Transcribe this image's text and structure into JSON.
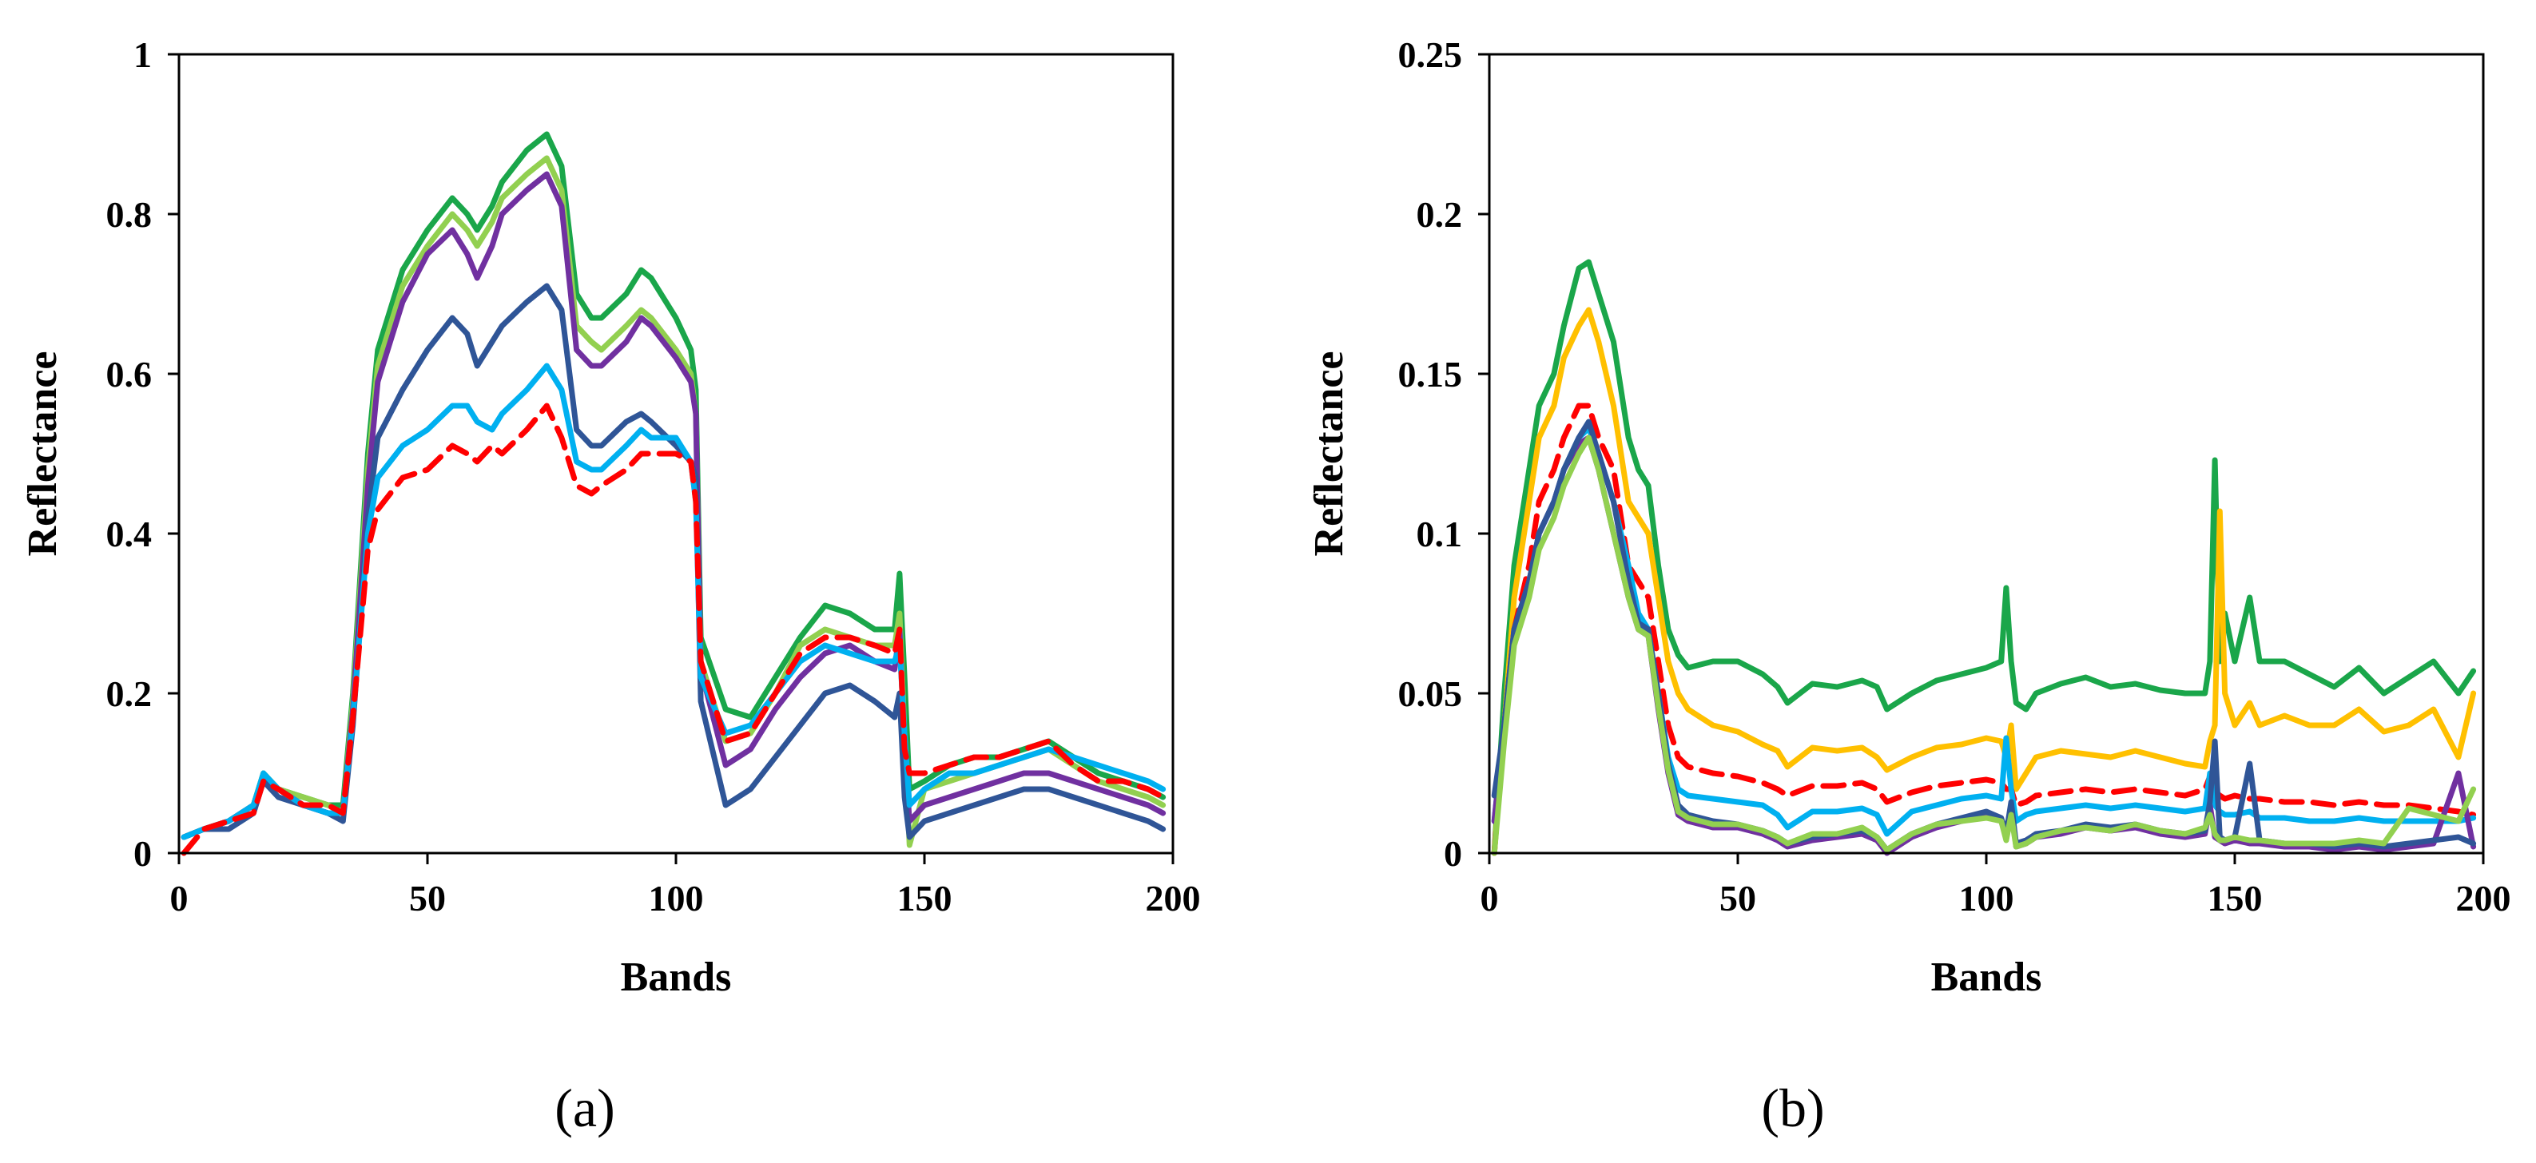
{
  "figure": {
    "panels": [
      {
        "label": "(a)"
      },
      {
        "label": "(b)"
      }
    ]
  },
  "chart_data": [
    {
      "type": "line",
      "panel": "(a)",
      "title": "",
      "xlabel": "Bands",
      "ylabel": "Reflectance",
      "xlim": [
        0,
        200
      ],
      "ylim": [
        0,
        1
      ],
      "xticks": [
        0,
        50,
        100,
        150,
        200
      ],
      "xtick_labels": [
        "0",
        "50",
        "100",
        "150",
        "200"
      ],
      "yticks": [
        0,
        0.2,
        0.4,
        0.6,
        0.8,
        1
      ],
      "ytick_labels": [
        "0",
        "0.2",
        "0.4",
        "0.6",
        "0.8",
        "1"
      ],
      "grid": false,
      "x": [
        1,
        5,
        10,
        15,
        17,
        20,
        25,
        30,
        33,
        35,
        38,
        40,
        45,
        50,
        55,
        58,
        60,
        63,
        65,
        70,
        74,
        77,
        80,
        83,
        85,
        90,
        93,
        95,
        100,
        103,
        104,
        105,
        110,
        115,
        120,
        125,
        130,
        135,
        140,
        144,
        145,
        146,
        147,
        150,
        155,
        160,
        165,
        170,
        175,
        180,
        185,
        190,
        195,
        198
      ],
      "series": [
        {
          "name": "Green",
          "color": "#1aa64a",
          "dash": "",
          "values": [
            0.02,
            0.03,
            0.04,
            0.06,
            0.1,
            0.08,
            0.07,
            0.06,
            0.06,
            0.2,
            0.5,
            0.63,
            0.73,
            0.78,
            0.82,
            0.8,
            0.78,
            0.81,
            0.84,
            0.88,
            0.9,
            0.86,
            0.7,
            0.67,
            0.67,
            0.7,
            0.73,
            0.72,
            0.67,
            0.63,
            0.58,
            0.27,
            0.18,
            0.17,
            0.22,
            0.27,
            0.31,
            0.3,
            0.28,
            0.28,
            0.35,
            0.22,
            0.08,
            0.09,
            0.11,
            0.12,
            0.12,
            0.13,
            0.14,
            0.12,
            0.1,
            0.09,
            0.08,
            0.07
          ]
        },
        {
          "name": "Light green",
          "color": "#92d050",
          "dash": "",
          "values": [
            0.02,
            0.03,
            0.04,
            0.06,
            0.1,
            0.08,
            0.07,
            0.06,
            0.05,
            0.19,
            0.48,
            0.61,
            0.71,
            0.76,
            0.8,
            0.78,
            0.76,
            0.79,
            0.82,
            0.85,
            0.87,
            0.83,
            0.66,
            0.64,
            0.63,
            0.66,
            0.68,
            0.67,
            0.63,
            0.6,
            0.55,
            0.24,
            0.14,
            0.15,
            0.2,
            0.26,
            0.28,
            0.27,
            0.26,
            0.26,
            0.3,
            0.15,
            0.01,
            0.08,
            0.09,
            0.1,
            0.11,
            0.12,
            0.13,
            0.11,
            0.09,
            0.08,
            0.07,
            0.06
          ]
        },
        {
          "name": "Purple",
          "color": "#7030a0",
          "dash": "",
          "values": [
            0.02,
            0.03,
            0.04,
            0.06,
            0.09,
            0.08,
            0.06,
            0.05,
            0.05,
            0.18,
            0.46,
            0.59,
            0.69,
            0.75,
            0.78,
            0.75,
            0.72,
            0.76,
            0.8,
            0.83,
            0.85,
            0.81,
            0.63,
            0.61,
            0.61,
            0.64,
            0.67,
            0.66,
            0.62,
            0.59,
            0.55,
            0.23,
            0.11,
            0.13,
            0.18,
            0.22,
            0.25,
            0.26,
            0.24,
            0.23,
            0.28,
            0.13,
            0.04,
            0.06,
            0.07,
            0.08,
            0.09,
            0.1,
            0.1,
            0.09,
            0.08,
            0.07,
            0.06,
            0.05
          ]
        },
        {
          "name": "Dark blue",
          "color": "#2f5597",
          "dash": "",
          "values": [
            0.02,
            0.03,
            0.03,
            0.05,
            0.09,
            0.07,
            0.06,
            0.05,
            0.04,
            0.16,
            0.42,
            0.52,
            0.58,
            0.63,
            0.67,
            0.65,
            0.61,
            0.64,
            0.66,
            0.69,
            0.71,
            0.68,
            0.53,
            0.51,
            0.51,
            0.54,
            0.55,
            0.54,
            0.51,
            0.49,
            0.47,
            0.19,
            0.06,
            0.08,
            0.12,
            0.16,
            0.2,
            0.21,
            0.19,
            0.17,
            0.2,
            0.07,
            0.02,
            0.04,
            0.05,
            0.06,
            0.07,
            0.08,
            0.08,
            0.07,
            0.06,
            0.05,
            0.04,
            0.03
          ]
        },
        {
          "name": "Light blue",
          "color": "#00b0f0",
          "dash": "",
          "values": [
            0.02,
            0.03,
            0.04,
            0.06,
            0.1,
            0.08,
            0.06,
            0.05,
            0.05,
            0.17,
            0.4,
            0.47,
            0.51,
            0.53,
            0.56,
            0.56,
            0.54,
            0.53,
            0.55,
            0.58,
            0.61,
            0.58,
            0.49,
            0.48,
            0.48,
            0.51,
            0.53,
            0.52,
            0.52,
            0.49,
            0.44,
            0.22,
            0.15,
            0.16,
            0.2,
            0.24,
            0.26,
            0.25,
            0.24,
            0.24,
            0.26,
            0.15,
            0.06,
            0.08,
            0.1,
            0.1,
            0.11,
            0.12,
            0.13,
            0.12,
            0.11,
            0.1,
            0.09,
            0.08
          ]
        },
        {
          "name": "Red (dashed)",
          "color": "#ff0000",
          "dash": "26,14",
          "values": [
            0.0,
            0.03,
            0.04,
            0.05,
            0.09,
            0.08,
            0.06,
            0.06,
            0.05,
            0.17,
            0.38,
            0.43,
            0.47,
            0.48,
            0.51,
            0.5,
            0.49,
            0.51,
            0.5,
            0.53,
            0.56,
            0.52,
            0.46,
            0.45,
            0.46,
            0.48,
            0.5,
            0.5,
            0.5,
            0.49,
            0.44,
            0.24,
            0.14,
            0.15,
            0.2,
            0.25,
            0.27,
            0.27,
            0.26,
            0.25,
            0.28,
            0.13,
            0.1,
            0.1,
            0.11,
            0.12,
            0.12,
            0.13,
            0.14,
            0.11,
            0.09,
            0.09,
            0.08,
            0.07
          ]
        }
      ]
    },
    {
      "type": "line",
      "panel": "(b)",
      "title": "",
      "xlabel": "Bands",
      "ylabel": "Reflectance",
      "xlim": [
        0,
        200
      ],
      "ylim": [
        0,
        0.25
      ],
      "xticks": [
        0,
        50,
        100,
        150,
        200
      ],
      "xtick_labels": [
        "0",
        "50",
        "100",
        "150",
        "200"
      ],
      "yticks": [
        0,
        0.05,
        0.1,
        0.15,
        0.2,
        0.25
      ],
      "ytick_labels": [
        "0",
        "0.05",
        "0.1",
        "0.15",
        "0.2",
        "0.25"
      ],
      "grid": false,
      "x": [
        1,
        3,
        5,
        8,
        10,
        13,
        15,
        18,
        20,
        22,
        25,
        28,
        30,
        32,
        34,
        36,
        38,
        40,
        45,
        50,
        55,
        58,
        60,
        65,
        70,
        75,
        78,
        80,
        85,
        90,
        95,
        100,
        103,
        104,
        105,
        106,
        108,
        110,
        115,
        120,
        125,
        130,
        135,
        140,
        144,
        145,
        146,
        147,
        148,
        150,
        153,
        155,
        160,
        165,
        170,
        175,
        180,
        185,
        190,
        195,
        198
      ],
      "series": [
        {
          "name": "Green",
          "color": "#1aa64a",
          "dash": "",
          "values": [
            0.0,
            0.05,
            0.09,
            0.12,
            0.14,
            0.15,
            0.165,
            0.183,
            0.185,
            0.175,
            0.16,
            0.13,
            0.12,
            0.115,
            0.09,
            0.07,
            0.062,
            0.058,
            0.06,
            0.06,
            0.056,
            0.052,
            0.047,
            0.053,
            0.052,
            0.054,
            0.052,
            0.045,
            0.05,
            0.054,
            0.056,
            0.058,
            0.06,
            0.083,
            0.06,
            0.047,
            0.045,
            0.05,
            0.053,
            0.055,
            0.052,
            0.053,
            0.051,
            0.05,
            0.05,
            0.06,
            0.123,
            0.06,
            0.075,
            0.06,
            0.08,
            0.06,
            0.06,
            0.056,
            0.052,
            0.058,
            0.05,
            0.055,
            0.06,
            0.05,
            0.057
          ]
        },
        {
          "name": "Yellow",
          "color": "#ffc000",
          "dash": "",
          "values": [
            0.0,
            0.04,
            0.08,
            0.11,
            0.13,
            0.14,
            0.155,
            0.165,
            0.17,
            0.16,
            0.14,
            0.11,
            0.105,
            0.1,
            0.08,
            0.06,
            0.05,
            0.045,
            0.04,
            0.038,
            0.034,
            0.032,
            0.027,
            0.033,
            0.032,
            0.033,
            0.03,
            0.026,
            0.03,
            0.033,
            0.034,
            0.036,
            0.035,
            0.03,
            0.04,
            0.02,
            0.025,
            0.03,
            0.032,
            0.031,
            0.03,
            0.032,
            0.03,
            0.028,
            0.027,
            0.035,
            0.04,
            0.107,
            0.05,
            0.04,
            0.047,
            0.04,
            0.043,
            0.04,
            0.04,
            0.045,
            0.038,
            0.04,
            0.045,
            0.03,
            0.05
          ]
        },
        {
          "name": "Red (dashed)",
          "color": "#ff0000",
          "dash": "26,14",
          "values": [
            0.0,
            0.04,
            0.07,
            0.09,
            0.11,
            0.12,
            0.13,
            0.14,
            0.14,
            0.13,
            0.12,
            0.09,
            0.085,
            0.08,
            0.06,
            0.04,
            0.03,
            0.027,
            0.025,
            0.024,
            0.022,
            0.02,
            0.018,
            0.021,
            0.021,
            0.022,
            0.02,
            0.016,
            0.019,
            0.021,
            0.022,
            0.023,
            0.022,
            0.02,
            0.02,
            0.015,
            0.016,
            0.018,
            0.019,
            0.02,
            0.019,
            0.02,
            0.019,
            0.018,
            0.02,
            0.024,
            0.02,
            0.018,
            0.017,
            0.018,
            0.017,
            0.017,
            0.016,
            0.016,
            0.015,
            0.016,
            0.015,
            0.015,
            0.014,
            0.013,
            0.012
          ]
        },
        {
          "name": "Light blue",
          "color": "#00b0f0",
          "dash": "",
          "values": [
            0.01,
            0.04,
            0.07,
            0.085,
            0.1,
            0.11,
            0.12,
            0.13,
            0.133,
            0.125,
            0.11,
            0.09,
            0.075,
            0.07,
            0.05,
            0.03,
            0.02,
            0.018,
            0.017,
            0.016,
            0.015,
            0.012,
            0.008,
            0.013,
            0.013,
            0.014,
            0.012,
            0.006,
            0.013,
            0.015,
            0.017,
            0.018,
            0.017,
            0.036,
            0.02,
            0.01,
            0.012,
            0.013,
            0.014,
            0.015,
            0.014,
            0.015,
            0.014,
            0.013,
            0.014,
            0.025,
            0.015,
            0.013,
            0.012,
            0.012,
            0.013,
            0.011,
            0.011,
            0.01,
            0.01,
            0.011,
            0.01,
            0.01,
            0.01,
            0.01,
            0.011
          ]
        },
        {
          "name": "Purple",
          "color": "#7030a0",
          "dash": "",
          "values": [
            0.01,
            0.04,
            0.07,
            0.085,
            0.1,
            0.11,
            0.12,
            0.128,
            0.13,
            0.12,
            0.1,
            0.08,
            0.07,
            0.068,
            0.045,
            0.025,
            0.012,
            0.01,
            0.008,
            0.008,
            0.006,
            0.004,
            0.002,
            0.004,
            0.005,
            0.006,
            0.004,
            0.0,
            0.005,
            0.008,
            0.01,
            0.012,
            0.01,
            0.005,
            0.015,
            0.002,
            0.003,
            0.005,
            0.006,
            0.008,
            0.007,
            0.008,
            0.006,
            0.005,
            0.006,
            0.015,
            0.005,
            0.004,
            0.003,
            0.004,
            0.003,
            0.003,
            0.002,
            0.002,
            0.001,
            0.002,
            0.001,
            0.002,
            0.003,
            0.025,
            0.002
          ]
        },
        {
          "name": "Dark blue",
          "color": "#2f5597",
          "dash": "",
          "values": [
            0.018,
            0.04,
            0.07,
            0.085,
            0.1,
            0.11,
            0.12,
            0.13,
            0.135,
            0.125,
            0.11,
            0.085,
            0.072,
            0.07,
            0.05,
            0.028,
            0.015,
            0.012,
            0.01,
            0.009,
            0.007,
            0.005,
            0.003,
            0.005,
            0.006,
            0.007,
            0.005,
            0.001,
            0.006,
            0.009,
            0.011,
            0.013,
            0.011,
            0.006,
            0.016,
            0.003,
            0.004,
            0.006,
            0.007,
            0.009,
            0.008,
            0.009,
            0.007,
            0.006,
            0.007,
            0.016,
            0.035,
            0.005,
            0.004,
            0.005,
            0.028,
            0.004,
            0.003,
            0.003,
            0.002,
            0.003,
            0.002,
            0.003,
            0.004,
            0.005,
            0.003
          ]
        },
        {
          "name": "Light green",
          "color": "#92d050",
          "dash": "",
          "values": [
            0.0,
            0.035,
            0.065,
            0.08,
            0.095,
            0.105,
            0.115,
            0.125,
            0.13,
            0.12,
            0.1,
            0.08,
            0.07,
            0.068,
            0.046,
            0.026,
            0.013,
            0.011,
            0.009,
            0.009,
            0.007,
            0.005,
            0.003,
            0.006,
            0.006,
            0.008,
            0.005,
            0.001,
            0.006,
            0.009,
            0.01,
            0.011,
            0.01,
            0.004,
            0.012,
            0.002,
            0.003,
            0.005,
            0.007,
            0.008,
            0.007,
            0.009,
            0.007,
            0.006,
            0.008,
            0.012,
            0.006,
            0.004,
            0.004,
            0.005,
            0.004,
            0.004,
            0.003,
            0.003,
            0.003,
            0.004,
            0.003,
            0.014,
            0.012,
            0.01,
            0.02
          ]
        }
      ]
    }
  ]
}
